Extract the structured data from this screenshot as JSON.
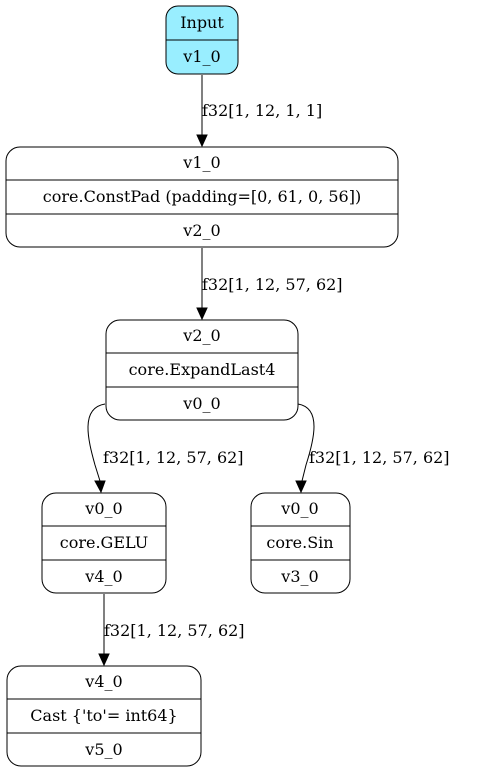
{
  "colors": {
    "input_fill": "#99eeff",
    "node_fill": "#ffffff",
    "stroke": "#000000"
  },
  "nodes": {
    "input": {
      "title": "Input",
      "output": "v1_0"
    },
    "constpad": {
      "input": "v1_0",
      "op": "core.ConstPad (padding=[0, 61, 0, 56])",
      "output": "v2_0"
    },
    "expand": {
      "input": "v2_0",
      "op": "core.ExpandLast4",
      "output": "v0_0"
    },
    "gelu": {
      "input": "v0_0",
      "op": "core.GELU",
      "output": "v4_0"
    },
    "sin": {
      "input": "v0_0",
      "op": "core.Sin",
      "output": "v3_0"
    },
    "cast": {
      "input": "v4_0",
      "op": "Cast {'to'= int64}",
      "output": "v5_0"
    }
  },
  "edges": {
    "input_to_constpad": "f32[1, 12, 1, 1]",
    "constpad_to_expand": "f32[1, 12, 57, 62]",
    "expand_to_gelu": "f32[1, 12, 57, 62]",
    "expand_to_sin": "f32[1, 12, 57, 62]",
    "gelu_to_cast": "f32[1, 12, 57, 62]"
  }
}
